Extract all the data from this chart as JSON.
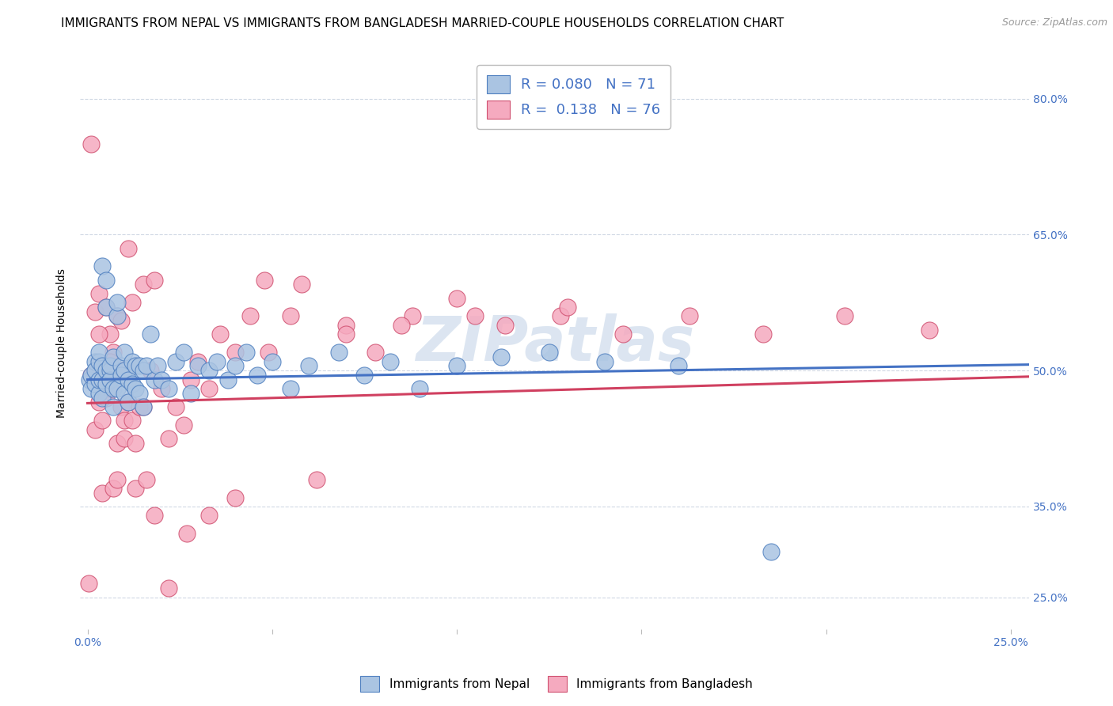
{
  "title": "IMMIGRANTS FROM NEPAL VS IMMIGRANTS FROM BANGLADESH MARRIED-COUPLE HOUSEHOLDS CORRELATION CHART",
  "source": "Source: ZipAtlas.com",
  "ylabel": "Married-couple Households",
  "nepal_color": "#aac4e2",
  "bangladesh_color": "#f5aabf",
  "nepal_edge_color": "#5080c0",
  "bangladesh_edge_color": "#d05070",
  "nepal_line_color": "#4472c4",
  "bangladesh_line_color": "#d04060",
  "nepal_R": 0.08,
  "nepal_N": 71,
  "bangladesh_R": 0.138,
  "bangladesh_N": 76,
  "nepal_intercept": 0.49,
  "nepal_slope": 0.065,
  "bangladesh_intercept": 0.464,
  "bangladesh_slope": 0.115,
  "xlim": [
    -0.002,
    0.255
  ],
  "ylim": [
    0.215,
    0.845
  ],
  "ytick_positions": [
    0.25,
    0.35,
    0.5,
    0.65,
    0.8
  ],
  "ytick_labels": [
    "25.0%",
    "35.0%",
    "50.0%",
    "65.0%",
    "80.0%"
  ],
  "xtick_positions": [
    0.0,
    0.05,
    0.1,
    0.15,
    0.2,
    0.25
  ],
  "xtick_labels": [
    "0.0%",
    "",
    "",
    "",
    "",
    "25.0%"
  ],
  "nepal_x": [
    0.0005,
    0.001,
    0.001,
    0.002,
    0.002,
    0.002,
    0.003,
    0.003,
    0.003,
    0.003,
    0.004,
    0.004,
    0.004,
    0.004,
    0.005,
    0.005,
    0.005,
    0.005,
    0.006,
    0.006,
    0.006,
    0.007,
    0.007,
    0.007,
    0.008,
    0.008,
    0.008,
    0.009,
    0.009,
    0.01,
    0.01,
    0.01,
    0.011,
    0.011,
    0.012,
    0.012,
    0.013,
    0.013,
    0.014,
    0.014,
    0.015,
    0.015,
    0.016,
    0.017,
    0.018,
    0.019,
    0.02,
    0.022,
    0.024,
    0.026,
    0.028,
    0.03,
    0.033,
    0.035,
    0.038,
    0.04,
    0.043,
    0.046,
    0.05,
    0.055,
    0.06,
    0.068,
    0.075,
    0.082,
    0.09,
    0.1,
    0.112,
    0.125,
    0.14,
    0.16,
    0.185
  ],
  "nepal_y": [
    0.49,
    0.48,
    0.495,
    0.485,
    0.51,
    0.5,
    0.475,
    0.51,
    0.49,
    0.52,
    0.49,
    0.47,
    0.505,
    0.615,
    0.6,
    0.57,
    0.5,
    0.485,
    0.5,
    0.49,
    0.505,
    0.46,
    0.515,
    0.48,
    0.56,
    0.575,
    0.48,
    0.505,
    0.495,
    0.5,
    0.475,
    0.52,
    0.49,
    0.465,
    0.51,
    0.485,
    0.505,
    0.48,
    0.505,
    0.475,
    0.5,
    0.46,
    0.505,
    0.54,
    0.49,
    0.505,
    0.49,
    0.48,
    0.51,
    0.52,
    0.475,
    0.505,
    0.5,
    0.51,
    0.49,
    0.505,
    0.52,
    0.495,
    0.51,
    0.48,
    0.505,
    0.52,
    0.495,
    0.51,
    0.48,
    0.505,
    0.515,
    0.52,
    0.51,
    0.505,
    0.3
  ],
  "bangladesh_x": [
    0.0003,
    0.001,
    0.001,
    0.002,
    0.002,
    0.003,
    0.003,
    0.003,
    0.004,
    0.004,
    0.004,
    0.005,
    0.005,
    0.005,
    0.006,
    0.006,
    0.006,
    0.007,
    0.007,
    0.008,
    0.008,
    0.008,
    0.009,
    0.009,
    0.01,
    0.01,
    0.011,
    0.011,
    0.012,
    0.013,
    0.013,
    0.014,
    0.015,
    0.016,
    0.017,
    0.018,
    0.02,
    0.022,
    0.024,
    0.026,
    0.028,
    0.03,
    0.033,
    0.036,
    0.04,
    0.044,
    0.049,
    0.055,
    0.062,
    0.07,
    0.078,
    0.088,
    0.1,
    0.113,
    0.128,
    0.145,
    0.163,
    0.183,
    0.205,
    0.228,
    0.003,
    0.006,
    0.009,
    0.012,
    0.015,
    0.018,
    0.022,
    0.027,
    0.033,
    0.04,
    0.048,
    0.058,
    0.07,
    0.085,
    0.105,
    0.13
  ],
  "bangladesh_y": [
    0.265,
    0.75,
    0.495,
    0.435,
    0.565,
    0.465,
    0.505,
    0.585,
    0.445,
    0.365,
    0.49,
    0.57,
    0.5,
    0.47,
    0.5,
    0.48,
    0.54,
    0.52,
    0.37,
    0.42,
    0.56,
    0.38,
    0.46,
    0.5,
    0.425,
    0.445,
    0.635,
    0.465,
    0.445,
    0.42,
    0.37,
    0.46,
    0.46,
    0.38,
    0.5,
    0.34,
    0.48,
    0.425,
    0.46,
    0.44,
    0.49,
    0.51,
    0.48,
    0.54,
    0.52,
    0.56,
    0.52,
    0.56,
    0.38,
    0.55,
    0.52,
    0.56,
    0.58,
    0.55,
    0.56,
    0.54,
    0.56,
    0.54,
    0.56,
    0.545,
    0.54,
    0.51,
    0.555,
    0.575,
    0.595,
    0.6,
    0.26,
    0.32,
    0.34,
    0.36,
    0.6,
    0.595,
    0.54,
    0.55,
    0.56,
    0.57
  ],
  "watermark": "ZIPatlas",
  "watermark_color": "#c5d5e8",
  "background_color": "#ffffff",
  "grid_color": "#d0d8e4",
  "title_fontsize": 11,
  "axis_label_fontsize": 10,
  "tick_fontsize": 10,
  "legend_fontsize": 13,
  "source_fontsize": 9
}
